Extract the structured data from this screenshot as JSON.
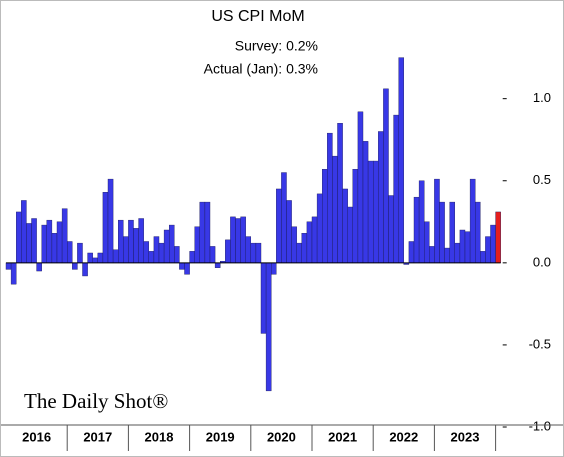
{
  "chart_data": {
    "type": "bar",
    "title": "US CPI MoM",
    "annotations": [
      "Survey:  0.2%",
      "Actual (Jan):  0.3%"
    ],
    "source": "The Daily Shot®",
    "categories": [
      null,
      null,
      null,
      null,
      null,
      null,
      null,
      null,
      null,
      null,
      null,
      null,
      null,
      null,
      null,
      null,
      null,
      null,
      null,
      null,
      null,
      null,
      null,
      null,
      null,
      null,
      null,
      null,
      null,
      null,
      null,
      null,
      null,
      null,
      null,
      null,
      null,
      null,
      null,
      null,
      null,
      null,
      null,
      null,
      null,
      null,
      null,
      null,
      null,
      null,
      null,
      null,
      null,
      null,
      null,
      null,
      null,
      null,
      null,
      null,
      null,
      null,
      null,
      null,
      null,
      null,
      null,
      null,
      null,
      null,
      null,
      null,
      null,
      null,
      null,
      null,
      null,
      null,
      null,
      null,
      null,
      null,
      null,
      null,
      null,
      null,
      null,
      null,
      null,
      null,
      null,
      null,
      null,
      null,
      null,
      null,
      null
    ],
    "year_labels": [
      "2016",
      "2017",
      "2018",
      "2019",
      "2020",
      "2021",
      "2022",
      "2023"
    ],
    "values": [
      -0.04,
      -0.13,
      0.31,
      0.38,
      0.24,
      0.27,
      -0.05,
      0.23,
      0.26,
      0.18,
      0.25,
      0.33,
      0.13,
      -0.04,
      0.12,
      -0.08,
      0.06,
      0.03,
      0.06,
      0.43,
      0.51,
      0.08,
      0.26,
      0.16,
      0.26,
      0.21,
      0.27,
      0.13,
      0.07,
      0.16,
      0.12,
      0.2,
      0.23,
      0.1,
      -0.04,
      -0.07,
      0.07,
      0.22,
      0.37,
      0.37,
      0.1,
      -0.03,
      0.01,
      0.14,
      0.28,
      0.27,
      0.28,
      0.16,
      0.12,
      0.12,
      -0.43,
      -0.78,
      -0.07,
      0.45,
      0.55,
      0.38,
      0.22,
      0.12,
      0.18,
      0.25,
      0.28,
      0.42,
      0.57,
      0.79,
      0.65,
      0.85,
      0.45,
      0.34,
      0.57,
      0.92,
      0.74,
      0.62,
      0.62,
      0.8,
      1.06,
      0.41,
      0.9,
      1.25,
      -0.01,
      0.13,
      0.4,
      0.5,
      0.25,
      0.1,
      0.51,
      0.37,
      0.09,
      0.37,
      0.12,
      0.2,
      0.19,
      0.51,
      0.37,
      0.07,
      0.16,
      0.23,
      0.31
    ],
    "color": "#3838e6",
    "last_color": "#e41e1e",
    "ylim": [
      -1.0,
      1.4
    ],
    "yticks": [
      {
        "value": -1,
        "label": "-1.0"
      },
      -0.5,
      {
        "value": 0,
        "label": "0.0"
      },
      0.5,
      {
        "value": 1,
        "label": "1.0"
      }
    ],
    "grid": false
  }
}
